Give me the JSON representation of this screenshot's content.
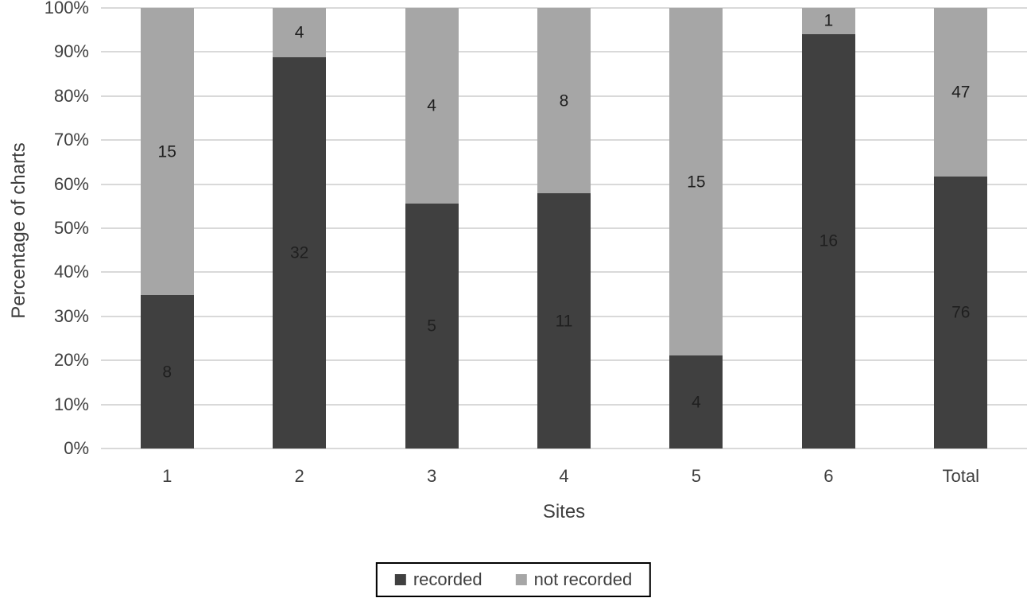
{
  "chart_data": {
    "type": "bar",
    "stacked": true,
    "percent_axis": true,
    "xlabel": "Sites",
    "ylabel": "Percentage of charts",
    "categories": [
      "1",
      "2",
      "3",
      "4",
      "5",
      "6",
      "Total"
    ],
    "series": [
      {
        "name": "recorded",
        "color": "#404040",
        "values": [
          8,
          32,
          5,
          11,
          4,
          16,
          76
        ]
      },
      {
        "name": "not recorded",
        "color": "#a6a6a6",
        "values": [
          15,
          4,
          4,
          8,
          15,
          1,
          47
        ]
      }
    ],
    "y_ticks": [
      "0%",
      "10%",
      "20%",
      "30%",
      "40%",
      "50%",
      "60%",
      "70%",
      "80%",
      "90%",
      "100%"
    ],
    "ylim": [
      0,
      100
    ],
    "grid": true,
    "gridline_color": "#d9d9d9",
    "axis_text_color": "#3f3f3f",
    "data_label_color": "#1f1f1f",
    "legend_position": "bottom",
    "legend_border_color": "#000000"
  }
}
